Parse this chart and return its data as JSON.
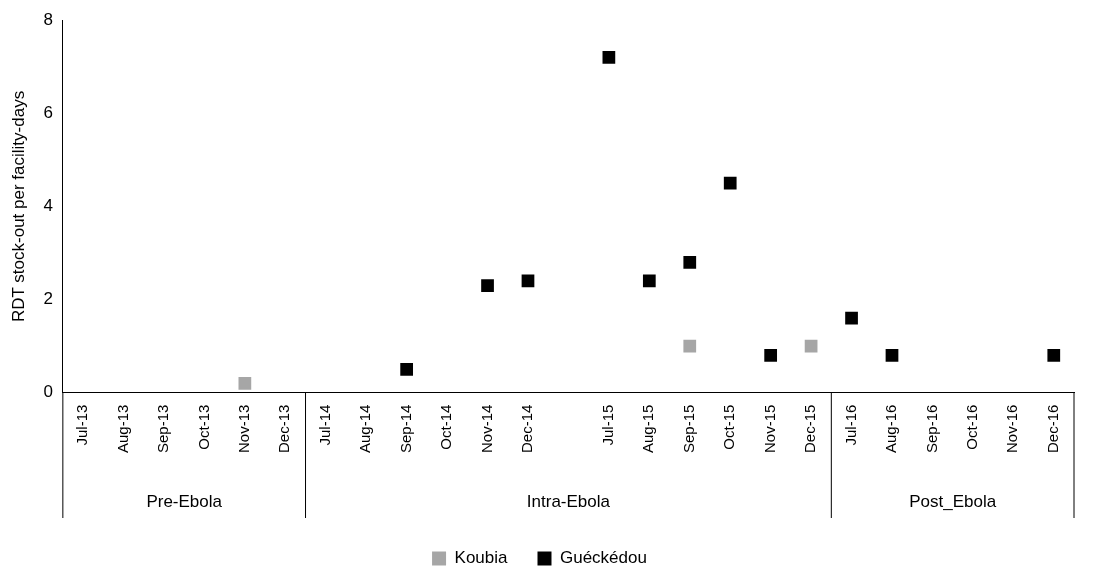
{
  "chart_data": {
    "type": "scatter",
    "ylabel": "RDT stock-out per facility-days",
    "categories": [
      "Jul-13",
      "Aug-13",
      "Sep-13",
      "Oct-13",
      "Nov-13",
      "Dec-13",
      "Jul-14",
      "Aug-14",
      "Sep-14",
      "Oct-14",
      "Nov-14",
      "Dec-14",
      null,
      "Jul-15",
      "Aug-15",
      "Sep-15",
      "Oct-15",
      "Nov-15",
      "Dec-15",
      "Jul-16",
      "Aug-16",
      "Sep-16",
      "Oct-16",
      "Nov-16",
      "Dec-16"
    ],
    "series": [
      {
        "name": "Koubia",
        "color": "#a6a6a6",
        "values": [
          null,
          null,
          null,
          null,
          0.2,
          null,
          null,
          null,
          null,
          null,
          null,
          null,
          null,
          null,
          null,
          1.0,
          null,
          null,
          1.0,
          null,
          null,
          null,
          null,
          null,
          null
        ]
      },
      {
        "name": "Guéckédou",
        "color": "#000000",
        "values": [
          null,
          null,
          null,
          null,
          null,
          null,
          null,
          null,
          0.5,
          null,
          2.3,
          2.4,
          null,
          7.2,
          2.4,
          2.8,
          4.5,
          0.8,
          null,
          1.6,
          0.8,
          null,
          null,
          null,
          0.8
        ]
      }
    ],
    "ylim": [
      0,
      8
    ],
    "yticks": [
      0,
      2,
      4,
      6,
      8
    ],
    "grid": false,
    "legend": "bottom",
    "marker": "square",
    "annotations": [
      "Pre-Ebola",
      "Intra-Ebola",
      "Post_Ebola"
    ]
  }
}
